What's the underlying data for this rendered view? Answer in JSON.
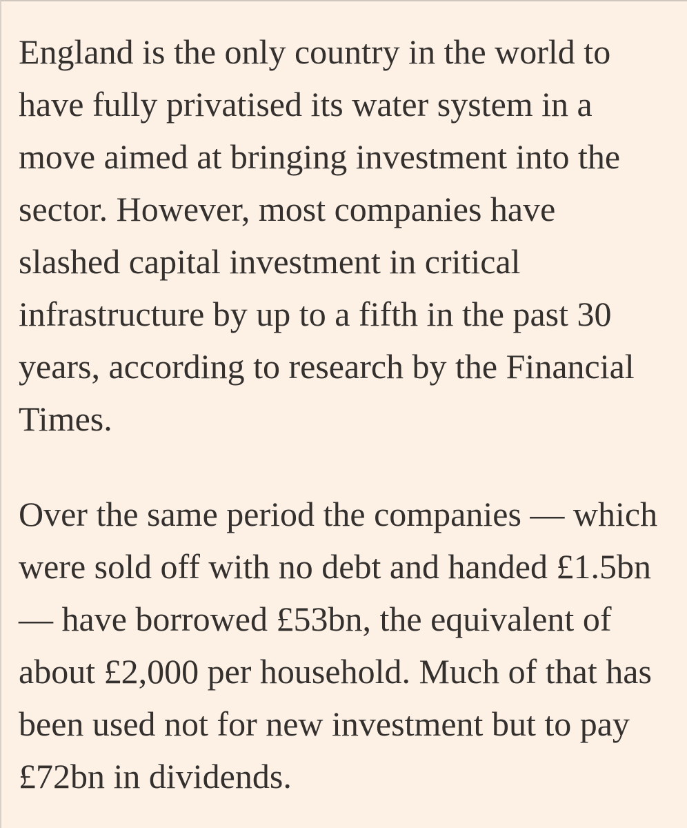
{
  "article": {
    "paragraphs": [
      {
        "lines": [
          "England is the only country in the world to",
          "have fully privatised its water system in a",
          "move aimed at bringing investment into the",
          "sector. However, most companies have",
          "slashed capital investment in critical",
          "infrastructure by up to a fifth in the past 30",
          "years, according to research by the Financial",
          "Times."
        ]
      },
      {
        "lines": [
          "Over the same period the companies — which",
          "were sold off with no debt and handed £1.5bn",
          "— have borrowed £53bn, the equivalent of",
          "about £2,000 per household. Much of that has",
          "been used not for new investment but to pay",
          "£72bn in dividends."
        ]
      }
    ]
  }
}
